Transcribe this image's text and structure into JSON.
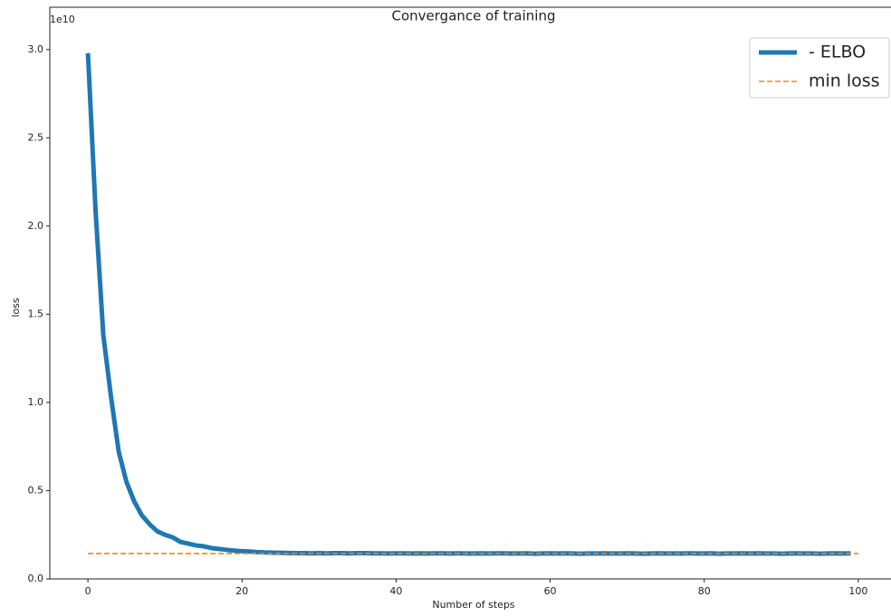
{
  "chart_data": {
    "type": "line",
    "title": "Convergance of training",
    "xlabel": "Number of steps",
    "ylabel": "loss",
    "y_offset_label": "1e10",
    "xlim": [
      -4.95,
      104.95
    ],
    "ylim": [
      0,
      3.24
    ],
    "xticks": [
      0,
      20,
      40,
      60,
      80,
      100
    ],
    "yticks": [
      {
        "value": 0,
        "label": "0.0"
      },
      0.5,
      {
        "value": 1,
        "label": "1.0"
      },
      1.5,
      {
        "value": 2,
        "label": "2.0"
      },
      2.5,
      {
        "value": 3,
        "label": "3.0"
      }
    ],
    "legend": "upper right",
    "series": [
      {
        "name": "- ELBO",
        "color": "#1f77b4",
        "style": "solid",
        "x": [
          0,
          1,
          2,
          3,
          4,
          5,
          6,
          7,
          8,
          9,
          10,
          11,
          12,
          13,
          14,
          15,
          16,
          17,
          18,
          19,
          20,
          21,
          22,
          23,
          24,
          25,
          26,
          27,
          28,
          29,
          30,
          31,
          32,
          33,
          34,
          35,
          36,
          37,
          38,
          39,
          40,
          41,
          42,
          43,
          44,
          45,
          46,
          47,
          48,
          49,
          50,
          51,
          52,
          53,
          54,
          55,
          56,
          57,
          58,
          59,
          60,
          61,
          62,
          63,
          64,
          65,
          66,
          67,
          68,
          69,
          70,
          71,
          72,
          73,
          74,
          75,
          76,
          77,
          78,
          79,
          80,
          81,
          82,
          83,
          84,
          85,
          86,
          87,
          88,
          89,
          90,
          91,
          92,
          93,
          94,
          95,
          96,
          97,
          98,
          99
        ],
        "values": [
          2.98,
          2.08,
          1.38,
          1.03,
          0.72,
          0.55,
          0.44,
          0.36,
          0.31,
          0.27,
          0.25,
          0.236,
          0.21,
          0.2,
          0.19,
          0.185,
          0.175,
          0.17,
          0.165,
          0.16,
          0.157,
          0.155,
          0.152,
          0.15,
          0.149,
          0.148,
          0.147,
          0.146,
          0.146,
          0.145,
          0.146,
          0.145,
          0.146,
          0.146,
          0.145,
          0.146,
          0.146,
          0.145,
          0.145,
          0.144,
          0.145,
          0.145,
          0.144,
          0.145,
          0.144,
          0.145,
          0.145,
          0.144,
          0.145,
          0.144,
          0.144,
          0.145,
          0.144,
          0.145,
          0.145,
          0.144,
          0.144,
          0.145,
          0.143,
          0.144,
          0.145,
          0.144,
          0.145,
          0.144,
          0.143,
          0.144,
          0.144,
          0.145,
          0.144,
          0.144,
          0.145,
          0.144,
          0.143,
          0.144,
          0.145,
          0.144,
          0.144,
          0.144,
          0.145,
          0.144,
          0.144,
          0.145,
          0.143,
          0.144,
          0.144,
          0.145,
          0.144,
          0.145,
          0.144,
          0.144,
          0.143,
          0.144,
          0.145,
          0.144,
          0.144,
          0.143,
          0.144,
          0.145,
          0.144,
          0.145
        ]
      },
      {
        "name": "min loss",
        "color": "#ff7f0e",
        "style": "dashed",
        "x": [
          0,
          100
        ],
        "values": [
          0.144,
          0.144
        ]
      }
    ]
  }
}
